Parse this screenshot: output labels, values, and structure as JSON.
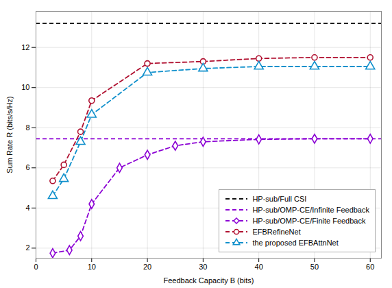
{
  "chart_data": {
    "type": "line",
    "xlabel": "Feedback Capacity B (bits)",
    "ylabel": "Sum Rate R (bits/s/Hz)",
    "xlim": [
      0,
      62
    ],
    "ylim": [
      1.5,
      13.8
    ],
    "xticks": [
      0,
      10,
      20,
      30,
      40,
      50,
      60
    ],
    "yticks": [
      2,
      4,
      6,
      8,
      10,
      12
    ],
    "grid": true,
    "legend": "lower right",
    "series": [
      {
        "name": "HP-sub/Full CSI",
        "type": "hline",
        "color": "#111111",
        "line_style": "dashed",
        "values": [
          13.2
        ]
      },
      {
        "name": "HP-sub/OMP-CE/Infinite Feedback",
        "type": "hline",
        "color": "#8b00d4",
        "line_style": "dashed",
        "values": [
          7.45
        ]
      },
      {
        "name": "HP-sub/OMP-CE/Finite Feedback",
        "type": "line",
        "color": "#8b00d4",
        "line_style": "dashed",
        "marker": "diamond",
        "x": [
          3,
          6,
          8,
          10,
          15,
          20,
          25,
          30,
          40,
          50,
          60
        ],
        "values": [
          1.75,
          1.9,
          2.6,
          4.2,
          6.0,
          6.65,
          7.1,
          7.3,
          7.42,
          7.45,
          7.45
        ]
      },
      {
        "name": "EFBRefineNet",
        "type": "line",
        "color": "#b01030",
        "line_style": "dashed",
        "marker": "circle",
        "x": [
          3,
          5,
          8,
          10,
          20,
          30,
          40,
          50,
          60
        ],
        "values": [
          5.35,
          6.15,
          7.8,
          9.35,
          11.2,
          11.3,
          11.45,
          11.5,
          11.5
        ]
      },
      {
        "name": "the proposed EFBAttnNet",
        "type": "line",
        "color": "#1090cc",
        "line_style": "dashed",
        "marker": "triangle",
        "x": [
          3,
          5,
          8,
          10,
          20,
          30,
          40,
          50,
          60
        ],
        "values": [
          4.6,
          5.45,
          7.3,
          8.65,
          10.75,
          10.95,
          11.05,
          11.05,
          11.05
        ]
      }
    ]
  }
}
